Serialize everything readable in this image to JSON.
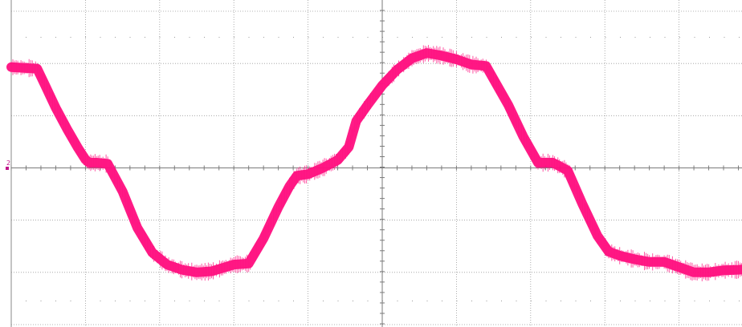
{
  "chart_data": {
    "type": "line",
    "grid": true,
    "grid_divisions": {
      "x": 10,
      "y": 6
    },
    "xlim": [
      0,
      10
    ],
    "ylim": [
      -3,
      3
    ],
    "series": [
      {
        "color": "#ff0f7f",
        "x": [
          0,
          0.35,
          0.45,
          0.6,
          0.75,
          0.9,
          1.0,
          1.05,
          1.15,
          1.3,
          1.5,
          1.7,
          1.9,
          2.1,
          2.3,
          2.5,
          2.7,
          3.0,
          3.2,
          3.4,
          3.6,
          3.75,
          3.85,
          4.0,
          4.2,
          4.4,
          4.55,
          4.65,
          4.8,
          5.0,
          5.2,
          5.4,
          5.6,
          5.8,
          6.0,
          6.2,
          6.4,
          6.5,
          6.7,
          6.9,
          7.1,
          7.3,
          7.5,
          7.7,
          7.9,
          8.05,
          8.2,
          8.4,
          8.6,
          8.8,
          9.0,
          9.2,
          9.4,
          9.6,
          9.8,
          10.0
        ],
        "y": [
          1.93,
          1.9,
          1.6,
          1.15,
          0.75,
          0.38,
          0.16,
          0.1,
          0.1,
          0.08,
          -0.45,
          -1.15,
          -1.62,
          -1.85,
          -1.95,
          -2.0,
          -1.98,
          -1.85,
          -1.83,
          -1.35,
          -0.75,
          -0.35,
          -0.15,
          -0.12,
          0.0,
          0.15,
          0.4,
          0.9,
          1.2,
          1.58,
          1.88,
          2.1,
          2.2,
          2.15,
          2.08,
          1.98,
          1.95,
          1.7,
          1.2,
          0.6,
          0.1,
          0.1,
          -0.05,
          -0.7,
          -1.3,
          -1.6,
          -1.68,
          -1.75,
          -1.8,
          -1.8,
          -1.9,
          -2.0,
          -2.0,
          -1.96,
          -1.95,
          -1.93
        ]
      }
    ],
    "channel_marker": "2"
  }
}
